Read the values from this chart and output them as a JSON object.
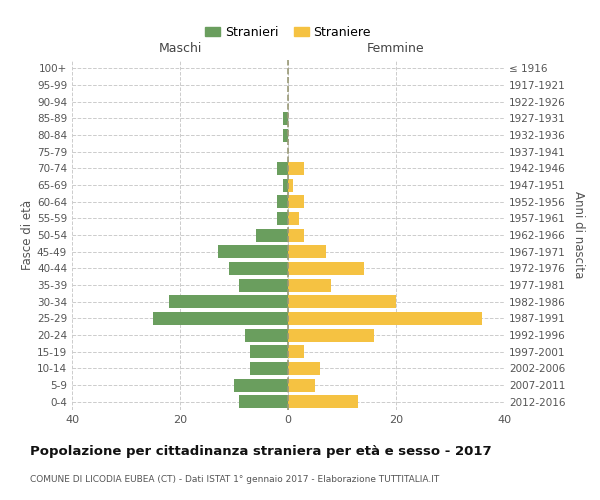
{
  "age_groups": [
    "0-4",
    "5-9",
    "10-14",
    "15-19",
    "20-24",
    "25-29",
    "30-34",
    "35-39",
    "40-44",
    "45-49",
    "50-54",
    "55-59",
    "60-64",
    "65-69",
    "70-74",
    "75-79",
    "80-84",
    "85-89",
    "90-94",
    "95-99",
    "100+"
  ],
  "birth_years": [
    "2012-2016",
    "2007-2011",
    "2002-2006",
    "1997-2001",
    "1992-1996",
    "1987-1991",
    "1982-1986",
    "1977-1981",
    "1972-1976",
    "1967-1971",
    "1962-1966",
    "1957-1961",
    "1952-1956",
    "1947-1951",
    "1942-1946",
    "1937-1941",
    "1932-1936",
    "1927-1931",
    "1922-1926",
    "1917-1921",
    "≤ 1916"
  ],
  "maschi": [
    9,
    10,
    7,
    7,
    8,
    25,
    22,
    9,
    11,
    13,
    6,
    2,
    2,
    1,
    2,
    0,
    1,
    1,
    0,
    0,
    0
  ],
  "femmine": [
    13,
    5,
    6,
    3,
    16,
    36,
    20,
    8,
    14,
    7,
    3,
    2,
    3,
    1,
    3,
    0,
    0,
    0,
    0,
    0,
    0
  ],
  "maschi_color": "#6a9e5e",
  "femmine_color": "#f5c242",
  "background_color": "#ffffff",
  "grid_color": "#cccccc",
  "title": "Popolazione per cittadinanza straniera per età e sesso - 2017",
  "subtitle": "COMUNE DI LICODIA EUBEA (CT) - Dati ISTAT 1° gennaio 2017 - Elaborazione TUTTITALIA.IT",
  "xlabel_left": "Maschi",
  "xlabel_right": "Femmine",
  "ylabel_left": "Fasce di età",
  "ylabel_right": "Anni di nascita",
  "legend_maschi": "Stranieri",
  "legend_femmine": "Straniere",
  "xlim": 40
}
